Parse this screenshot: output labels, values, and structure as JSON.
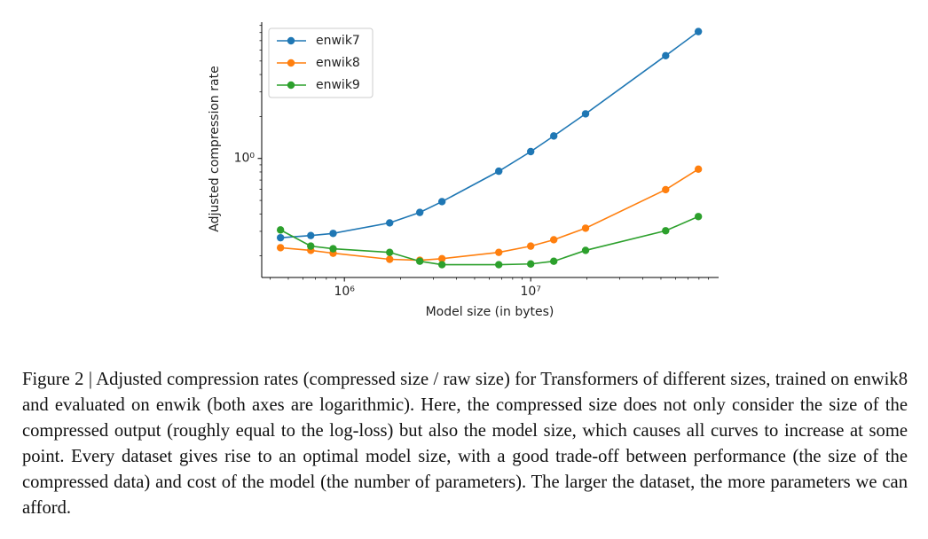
{
  "chart_data": {
    "type": "line",
    "x_label": "Model size (in bytes)",
    "y_label": "Adjusted compression rate",
    "xscale": "log",
    "yscale": "log",
    "x": [
      454000,
      660000,
      870000,
      1750000,
      2540000,
      3340000,
      6740000,
      10000000,
      13300000,
      19700000,
      53000000,
      79400000
    ],
    "series": [
      {
        "name": "enwik7",
        "color": "#1f77b4",
        "values": [
          0.27,
          0.28,
          0.29,
          0.345,
          0.41,
          0.49,
          0.81,
          1.12,
          1.45,
          2.09,
          5.46,
          8.13
        ]
      },
      {
        "name": "enwik8",
        "color": "#ff7f0e",
        "values": [
          0.229,
          0.219,
          0.209,
          0.189,
          0.186,
          0.191,
          0.212,
          0.235,
          0.261,
          0.316,
          0.597,
          0.838
        ]
      },
      {
        "name": "enwik9",
        "color": "#2ca02c",
        "values": [
          0.307,
          0.235,
          0.225,
          0.212,
          0.183,
          0.173,
          0.173,
          0.175,
          0.183,
          0.219,
          0.303,
          0.383
        ]
      }
    ],
    "xlim": [
      360000,
      102000000
    ],
    "ylim": [
      0.14,
      9.5
    ],
    "xticks": [
      {
        "value": 1000000,
        "label": "10⁶"
      },
      {
        "value": 10000000,
        "label": "10⁷"
      }
    ],
    "yticks": [
      {
        "value": 1,
        "label": "10⁰"
      }
    ],
    "legend": "upper left"
  },
  "caption": "Figure 2 | Adjusted compression rates (compressed size / raw size) for Transformers of different sizes, trained on enwik8 and evaluated on enwik (both axes are logarithmic). Here, the compressed size does not only consider the size of the compressed output (roughly equal to the log-loss) but also the model size, which causes all curves to increase at some point. Every dataset gives rise to an optimal model size, with a good trade-off between performance (the size of the compressed data) and cost of the model (the number of parameters). The larger the dataset, the more parameters we can afford."
}
